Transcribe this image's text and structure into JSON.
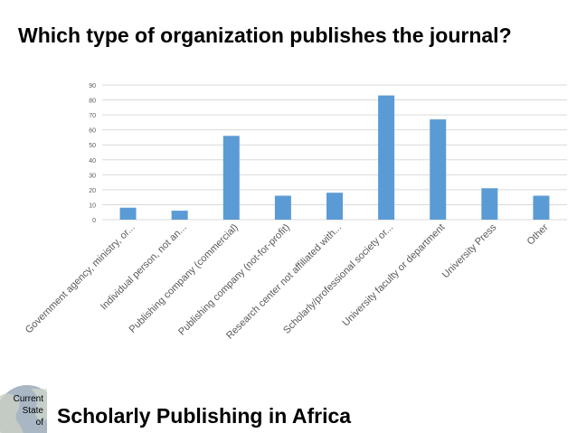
{
  "slide": {
    "title": "Which type of organization publishes the journal?",
    "footer_title": "Scholarly Publishing in Africa",
    "logo_lines": [
      "Current",
      "State",
      "of"
    ]
  },
  "colors": {
    "bar": "#5b9bd5",
    "grid": "#d9d9d9",
    "axis_text": "#595959"
  },
  "chart_data": {
    "type": "bar",
    "categories": [
      "Government agency, ministry, or...",
      "Individual person, not an...",
      "Publishing company (commercial)",
      "Publishing company (not-for-profit)",
      "Research center not affiliated with...",
      "Scholarly/professional society or...",
      "University faculty or department",
      "University Press",
      "Other"
    ],
    "values": [
      8,
      6,
      56,
      16,
      18,
      83,
      67,
      21,
      16
    ],
    "ylim": [
      0,
      90
    ],
    "yticks": [
      0,
      10,
      20,
      30,
      40,
      50,
      60,
      70,
      80,
      90
    ],
    "grid": true,
    "legend": false
  }
}
